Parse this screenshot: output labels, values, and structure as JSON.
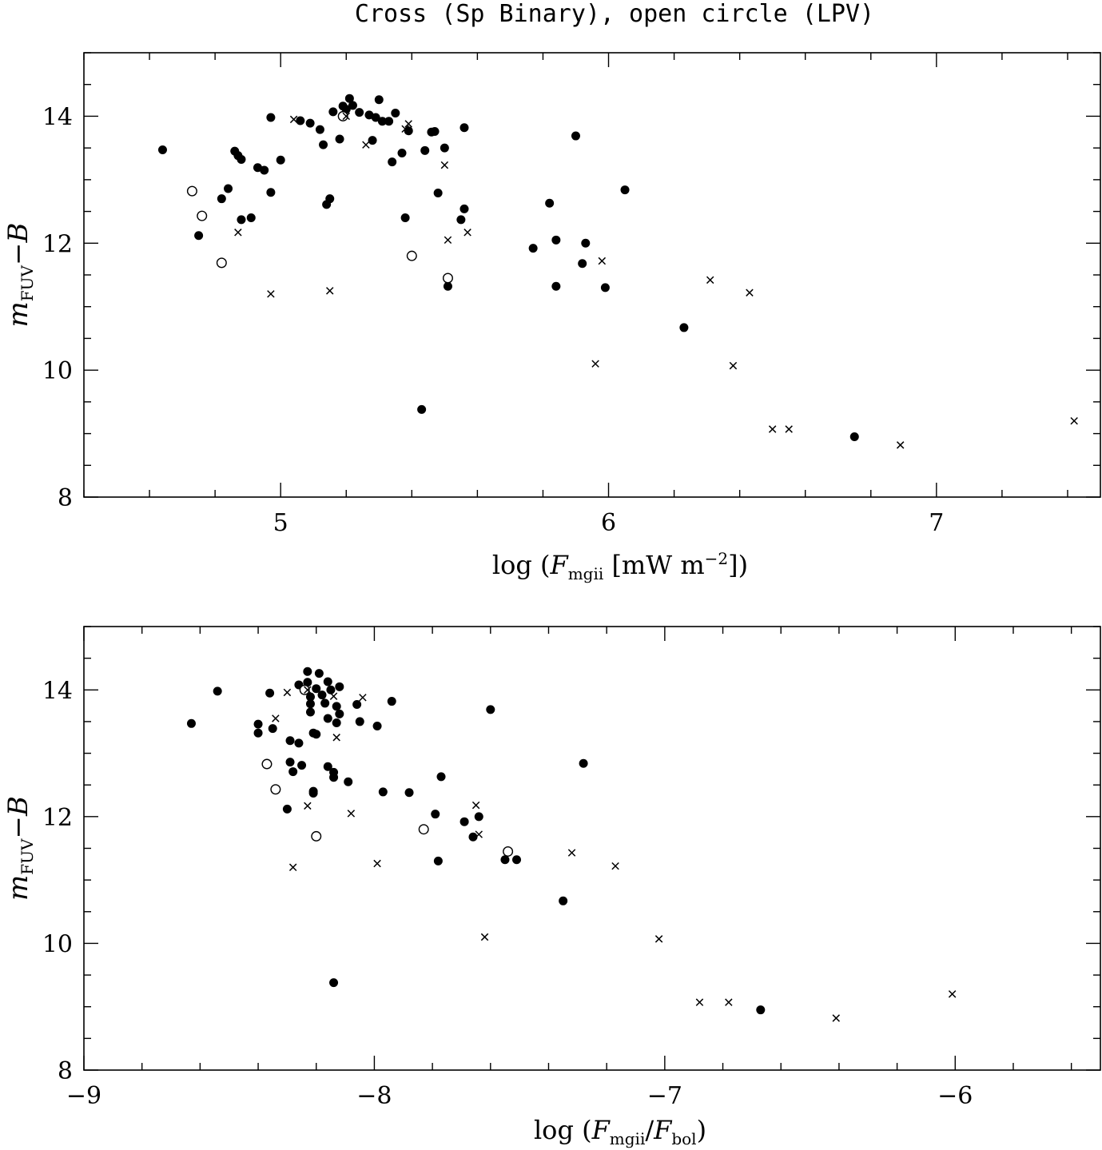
{
  "figure_title": "Cross (Sp Binary), open circle (LPV)",
  "chart_data": [
    {
      "type": "scatter",
      "xlabel": {
        "pre": "log (",
        "var": "F",
        "sub": "mgii",
        "post": " [mW m",
        "sup": "−2",
        "end": "])"
      },
      "ylabel": {
        "var": "m",
        "sub": "FUV",
        "post": "−",
        "var2": "B"
      },
      "xlim": [
        4.4,
        7.5
      ],
      "ylim": [
        8,
        15
      ],
      "x_ticks": [
        5,
        6,
        7
      ],
      "x_tick_labels": [
        "5",
        "6",
        "7"
      ],
      "x_minor_step": 0.2,
      "y_ticks": [
        8,
        10,
        12,
        14
      ],
      "y_tick_labels": [
        "8",
        "10",
        "12",
        "14"
      ],
      "y_minor_step": 0.5,
      "series": [
        {
          "marker": "filled-circle",
          "points": [
            [
              4.64,
              13.47
            ],
            [
              4.75,
              12.12
            ],
            [
              4.82,
              12.7
            ],
            [
              4.84,
              12.86
            ],
            [
              4.86,
              13.45
            ],
            [
              4.87,
              13.38
            ],
            [
              4.88,
              13.32
            ],
            [
              4.88,
              12.37
            ],
            [
              4.91,
              12.4
            ],
            [
              4.93,
              13.19
            ],
            [
              4.95,
              13.15
            ],
            [
              4.97,
              12.8
            ],
            [
              4.97,
              13.98
            ],
            [
              5.0,
              13.31
            ],
            [
              5.06,
              13.93
            ],
            [
              5.09,
              13.89
            ],
            [
              5.12,
              13.79
            ],
            [
              5.13,
              13.55
            ],
            [
              5.14,
              12.61
            ],
            [
              5.15,
              12.7
            ],
            [
              5.16,
              14.07
            ],
            [
              5.18,
              13.64
            ],
            [
              5.19,
              14.16
            ],
            [
              5.2,
              14.11
            ],
            [
              5.21,
              14.28
            ],
            [
              5.22,
              14.17
            ],
            [
              5.24,
              14.06
            ],
            [
              5.27,
              14.02
            ],
            [
              5.28,
              13.62
            ],
            [
              5.29,
              13.98
            ],
            [
              5.3,
              14.26
            ],
            [
              5.31,
              13.92
            ],
            [
              5.33,
              13.92
            ],
            [
              5.34,
              13.28
            ],
            [
              5.35,
              14.05
            ],
            [
              5.37,
              13.42
            ],
            [
              5.38,
              12.4
            ],
            [
              5.39,
              13.77
            ],
            [
              5.43,
              9.38
            ],
            [
              5.44,
              13.46
            ],
            [
              5.46,
              13.75
            ],
            [
              5.47,
              13.76
            ],
            [
              5.48,
              12.79
            ],
            [
              5.5,
              13.5
            ],
            [
              5.51,
              11.32
            ],
            [
              5.55,
              12.37
            ],
            [
              5.56,
              12.54
            ],
            [
              5.56,
              13.82
            ],
            [
              5.77,
              11.92
            ],
            [
              5.82,
              12.63
            ],
            [
              5.84,
              12.05
            ],
            [
              5.84,
              11.32
            ],
            [
              5.9,
              13.69
            ],
            [
              5.92,
              11.68
            ],
            [
              5.93,
              12.0
            ],
            [
              5.99,
              11.3
            ],
            [
              6.05,
              12.84
            ],
            [
              6.23,
              10.67
            ],
            [
              6.75,
              8.95
            ]
          ]
        },
        {
          "marker": "open-circle",
          "points": [
            [
              4.73,
              12.82
            ],
            [
              4.76,
              12.43
            ],
            [
              4.82,
              11.69
            ],
            [
              5.19,
              14.0
            ],
            [
              5.4,
              11.8
            ],
            [
              5.51,
              11.45
            ]
          ]
        },
        {
          "marker": "cross",
          "points": [
            [
              4.87,
              12.17
            ],
            [
              4.97,
              11.2
            ],
            [
              5.04,
              13.95
            ],
            [
              5.15,
              11.25
            ],
            [
              5.2,
              14.0
            ],
            [
              5.26,
              13.55
            ],
            [
              5.38,
              13.8
            ],
            [
              5.39,
              13.88
            ],
            [
              5.5,
              13.23
            ],
            [
              5.51,
              12.05
            ],
            [
              5.57,
              12.17
            ],
            [
              5.96,
              10.1
            ],
            [
              5.98,
              11.72
            ],
            [
              6.31,
              11.42
            ],
            [
              6.38,
              10.07
            ],
            [
              6.43,
              11.22
            ],
            [
              6.5,
              9.07
            ],
            [
              6.55,
              9.07
            ],
            [
              6.89,
              8.82
            ],
            [
              7.42,
              9.2
            ]
          ]
        }
      ]
    },
    {
      "type": "scatter",
      "xlabel": {
        "pre": "log (",
        "var": "F",
        "sub": "mgii",
        "mid": "/",
        "var2": "F",
        "sub2": "bol",
        "end": ")"
      },
      "ylabel": {
        "var": "m",
        "sub": "FUV",
        "post": "−",
        "var2": "B"
      },
      "xlim": [
        -9.0,
        -5.5
      ],
      "ylim": [
        8,
        15
      ],
      "x_ticks": [
        -9,
        -8,
        -7,
        -6
      ],
      "x_tick_labels": [
        "−9",
        "−8",
        "−7",
        "−6"
      ],
      "x_minor_step": 0.2,
      "y_ticks": [
        8,
        10,
        12,
        14
      ],
      "y_tick_labels": [
        "8",
        "10",
        "12",
        "14"
      ],
      "y_minor_step": 0.5,
      "series": [
        {
          "marker": "filled-circle",
          "points": [
            [
              -8.63,
              13.47
            ],
            [
              -8.54,
              13.98
            ],
            [
              -8.4,
              13.46
            ],
            [
              -8.4,
              13.32
            ],
            [
              -8.36,
              13.95
            ],
            [
              -8.35,
              13.39
            ],
            [
              -8.3,
              12.12
            ],
            [
              -8.29,
              12.86
            ],
            [
              -8.29,
              13.2
            ],
            [
              -8.28,
              12.71
            ],
            [
              -8.26,
              13.16
            ],
            [
              -8.26,
              14.08
            ],
            [
              -8.25,
              12.81
            ],
            [
              -8.23,
              14.12
            ],
            [
              -8.23,
              14.29
            ],
            [
              -8.22,
              13.89
            ],
            [
              -8.22,
              13.65
            ],
            [
              -8.22,
              13.78
            ],
            [
              -8.21,
              13.32
            ],
            [
              -8.21,
              12.4
            ],
            [
              -8.21,
              12.37
            ],
            [
              -8.2,
              14.02
            ],
            [
              -8.2,
              13.3
            ],
            [
              -8.19,
              14.26
            ],
            [
              -8.18,
              13.92
            ],
            [
              -8.17,
              13.79
            ],
            [
              -8.16,
              14.13
            ],
            [
              -8.16,
              13.55
            ],
            [
              -8.16,
              12.79
            ],
            [
              -8.15,
              14.0
            ],
            [
              -8.14,
              12.7
            ],
            [
              -8.14,
              12.62
            ],
            [
              -8.14,
              9.38
            ],
            [
              -8.13,
              13.74
            ],
            [
              -8.13,
              13.48
            ],
            [
              -8.12,
              14.05
            ],
            [
              -8.12,
              13.62
            ],
            [
              -8.09,
              12.55
            ],
            [
              -8.06,
              13.77
            ],
            [
              -8.05,
              13.5
            ],
            [
              -7.99,
              13.43
            ],
            [
              -7.97,
              12.39
            ],
            [
              -7.94,
              13.82
            ],
            [
              -7.88,
              12.38
            ],
            [
              -7.79,
              12.04
            ],
            [
              -7.78,
              11.3
            ],
            [
              -7.77,
              12.63
            ],
            [
              -7.69,
              11.92
            ],
            [
              -7.66,
              11.68
            ],
            [
              -7.64,
              12.0
            ],
            [
              -7.6,
              13.69
            ],
            [
              -7.55,
              11.32
            ],
            [
              -7.51,
              11.32
            ],
            [
              -7.35,
              10.67
            ],
            [
              -7.28,
              12.84
            ],
            [
              -6.67,
              8.95
            ]
          ]
        },
        {
          "marker": "open-circle",
          "points": [
            [
              -8.37,
              12.83
            ],
            [
              -8.34,
              12.43
            ],
            [
              -8.2,
              11.69
            ],
            [
              -8.24,
              14.0
            ],
            [
              -7.83,
              11.8
            ],
            [
              -7.54,
              11.45
            ]
          ]
        },
        {
          "marker": "cross",
          "points": [
            [
              -8.34,
              13.55
            ],
            [
              -8.3,
              13.96
            ],
            [
              -8.28,
              11.2
            ],
            [
              -8.23,
              14.0
            ],
            [
              -8.23,
              12.17
            ],
            [
              -8.14,
              13.9
            ],
            [
              -8.13,
              13.25
            ],
            [
              -8.08,
              12.05
            ],
            [
              -8.04,
              13.88
            ],
            [
              -7.99,
              11.26
            ],
            [
              -7.65,
              12.18
            ],
            [
              -7.64,
              11.72
            ],
            [
              -7.62,
              10.1
            ],
            [
              -7.32,
              11.43
            ],
            [
              -7.17,
              11.22
            ],
            [
              -7.02,
              10.07
            ],
            [
              -6.88,
              9.07
            ],
            [
              -6.78,
              9.07
            ],
            [
              -6.41,
              8.82
            ],
            [
              -6.01,
              9.2
            ]
          ]
        }
      ]
    }
  ]
}
